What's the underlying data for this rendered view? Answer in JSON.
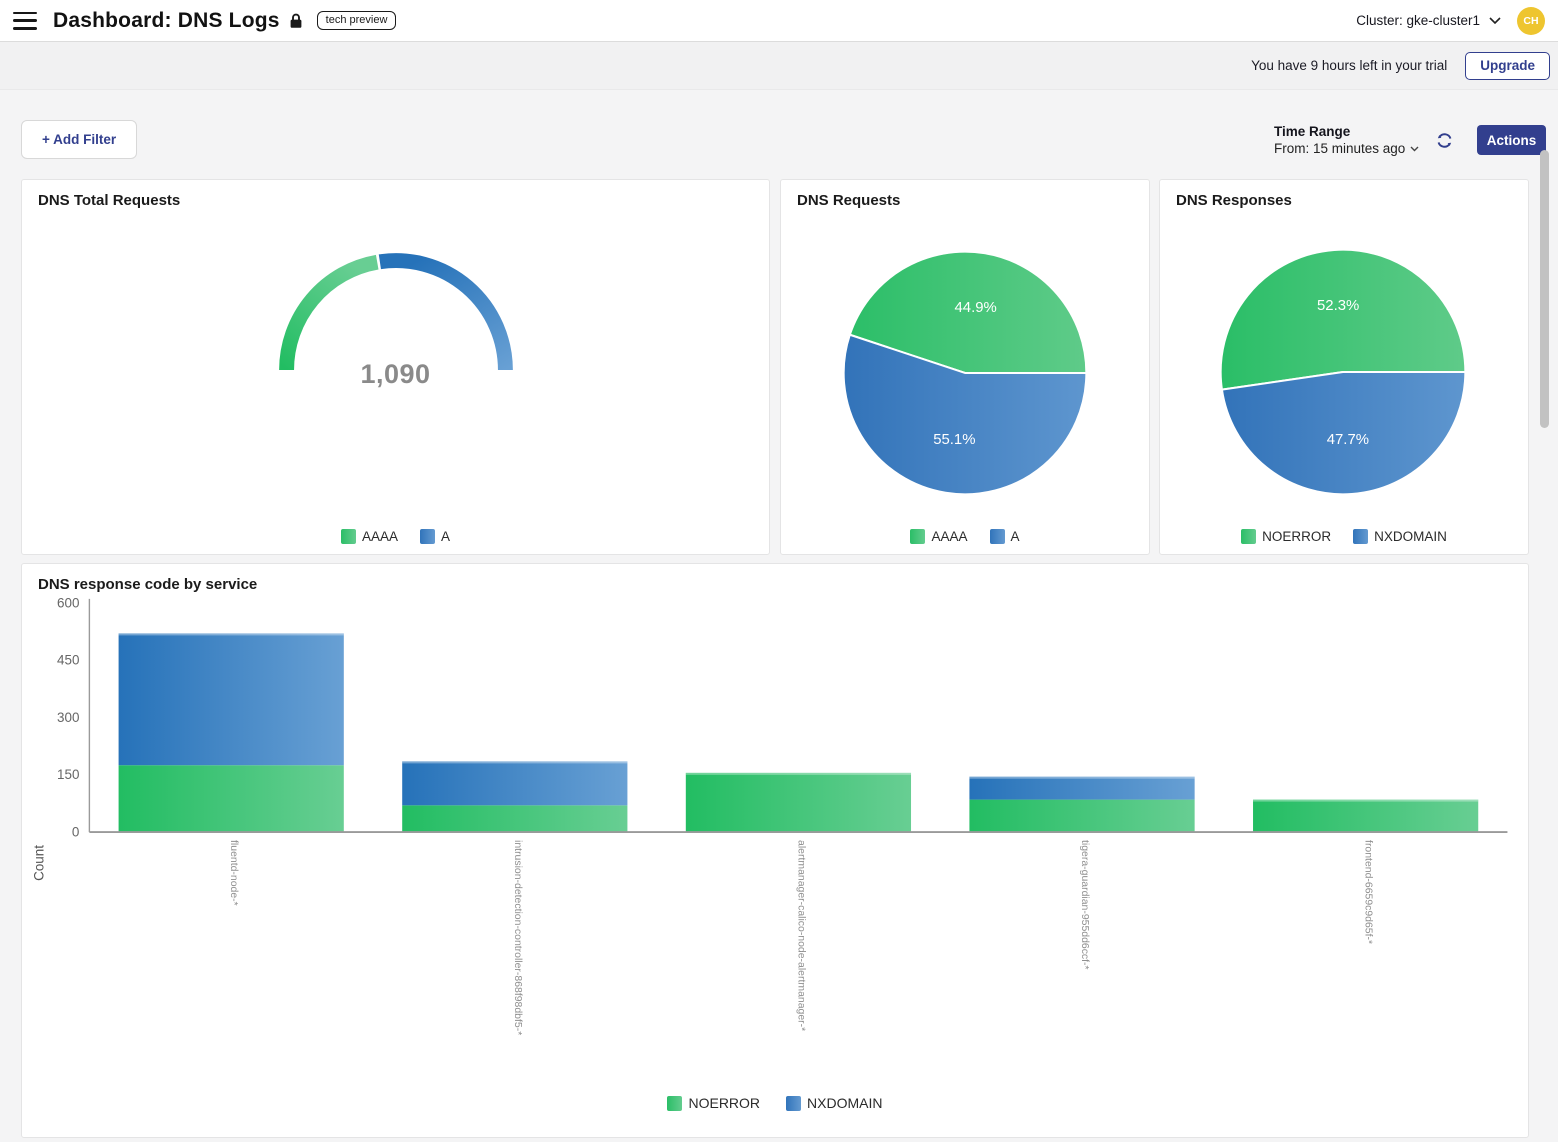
{
  "header": {
    "title": "Dashboard: DNS Logs",
    "badge": "tech preview",
    "cluster_label": "Cluster: gke-cluster1",
    "avatar_initials": "CH"
  },
  "trial_banner": {
    "message": "You have 9 hours left in your trial",
    "upgrade_label": "Upgrade"
  },
  "toolbar": {
    "add_filter_label": "+ Add Filter",
    "time_range_label": "Time Range",
    "time_range_value": "From: 15 minutes ago",
    "actions_label": "Actions"
  },
  "colors": {
    "navy": "#323f8e",
    "avatar_gold": "#eec52f",
    "green_start": "#22bd62",
    "green_end": "#68ce93",
    "blue_start": "#2672b9",
    "blue_end": "#68a0d4",
    "pie_green_start": "#2abe67",
    "pie_green_end": "#5fcb89",
    "pie_blue_start": "#3273b9",
    "pie_blue_end": "#5e96cf",
    "gauge_value_color": "#8a8a8a"
  },
  "chart_data": [
    {
      "id": "dns-total-requests",
      "type": "gauge",
      "title": "DNS Total Requests",
      "value": 1090,
      "value_label": "1,090",
      "segments": [
        {
          "name": "AAAA",
          "percent": 44.9,
          "color": "green"
        },
        {
          "name": "A",
          "percent": 55.1,
          "color": "blue"
        }
      ],
      "legend": [
        "AAAA",
        "A"
      ]
    },
    {
      "id": "dns-requests",
      "type": "pie",
      "title": "DNS Requests",
      "slices": [
        {
          "name": "AAAA",
          "percent": 44.9,
          "label": "44.9%",
          "color": "green"
        },
        {
          "name": "A",
          "percent": 55.1,
          "label": "55.1%",
          "color": "blue"
        }
      ],
      "legend": [
        "AAAA",
        "A"
      ]
    },
    {
      "id": "dns-responses",
      "type": "pie",
      "title": "DNS Responses",
      "slices": [
        {
          "name": "NOERROR",
          "percent": 52.3,
          "label": "52.3%",
          "color": "green"
        },
        {
          "name": "NXDOMAIN",
          "percent": 47.7,
          "label": "47.7%",
          "color": "blue"
        }
      ],
      "legend": [
        "NOERROR",
        "NXDOMAIN"
      ]
    },
    {
      "id": "dns-response-code-by-service",
      "type": "bar",
      "title": "DNS response code by service",
      "ylabel": "Count",
      "yticks": [
        0,
        150,
        300,
        450,
        600
      ],
      "ylim": [
        0,
        600
      ],
      "grid": false,
      "legend_position": "bottom",
      "categories": [
        "fluentd-node-*",
        "intrusion-detection-controller-868f98dbf5-*",
        "alertmanager-calico-node-alertmanager-*",
        "tigera-guardian-955dd6ccf-*",
        "frontend-6659c9d65f-*"
      ],
      "series": [
        {
          "name": "NOERROR",
          "color": "green",
          "values": [
            175,
            70,
            155,
            85,
            85
          ]
        },
        {
          "name": "NXDOMAIN",
          "color": "blue",
          "values": [
            345,
            115,
            0,
            60,
            0
          ]
        }
      ],
      "legend": [
        "NOERROR",
        "NXDOMAIN"
      ]
    }
  ]
}
